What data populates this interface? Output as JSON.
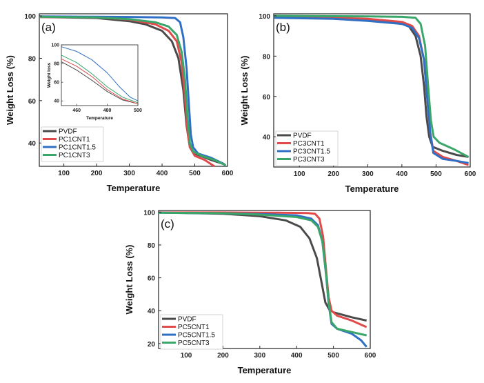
{
  "colors": {
    "black": "#4a4a4a",
    "red": "#e04a4a",
    "blue": "#2f6fc4",
    "green": "#3aa66a"
  },
  "chart_data": [
    {
      "type": "line",
      "panel_label": "(a)",
      "xlabel": "Temperature",
      "ylabel": "Weight Loss (%)",
      "xlim": [
        25,
        600
      ],
      "ylim": [
        29,
        101
      ],
      "xticks": [
        "100",
        "200",
        "300",
        "400",
        "500",
        "600"
      ],
      "yticks": [
        "40",
        "60",
        "80",
        "100"
      ],
      "series": [
        {
          "name": "PVDF",
          "color": "black",
          "points": [
            [
              25,
              99.5
            ],
            [
              200,
              99
            ],
            [
              300,
              97.5
            ],
            [
              350,
              96
            ],
            [
              400,
              93
            ],
            [
              430,
              88
            ],
            [
              450,
              80
            ],
            [
              465,
              65
            ],
            [
              475,
              48
            ],
            [
              485,
              38
            ],
            [
              500,
              35
            ],
            [
              550,
              32
            ],
            [
              590,
              30
            ]
          ]
        },
        {
          "name": "PC1CNT1",
          "color": "red",
          "points": [
            [
              25,
              99.5
            ],
            [
              200,
              99.3
            ],
            [
              300,
              98.3
            ],
            [
              380,
              96
            ],
            [
              420,
              93
            ],
            [
              445,
              88
            ],
            [
              460,
              78
            ],
            [
              470,
              62
            ],
            [
              478,
              45
            ],
            [
              485,
              38
            ],
            [
              500,
              34
            ],
            [
              530,
              32
            ],
            [
              560,
              29
            ]
          ]
        },
        {
          "name": "PC1CNT1.5",
          "color": "blue",
          "points": [
            [
              25,
              99.8
            ],
            [
              200,
              99.6
            ],
            [
              300,
              99.5
            ],
            [
              400,
              99.3
            ],
            [
              440,
              99
            ],
            [
              455,
              97
            ],
            [
              465,
              90
            ],
            [
              475,
              75
            ],
            [
              482,
              58
            ],
            [
              488,
              44
            ],
            [
              495,
              38
            ],
            [
              510,
              35
            ],
            [
              550,
              33
            ],
            [
              590,
              30
            ]
          ]
        },
        {
          "name": "PC1CNT3",
          "color": "green",
          "points": [
            [
              25,
              99.6
            ],
            [
              200,
              99.3
            ],
            [
              300,
              98.5
            ],
            [
              380,
              97
            ],
            [
              420,
              95
            ],
            [
              445,
              91
            ],
            [
              460,
              83
            ],
            [
              470,
              70
            ],
            [
              478,
              52
            ],
            [
              485,
              40
            ],
            [
              495,
              36
            ],
            [
              520,
              34
            ],
            [
              560,
              32
            ],
            [
              595,
              29.5
            ]
          ]
        }
      ],
      "inset": {
        "xlabel": "Temperature",
        "ylabel": "Weight loss",
        "xlim": [
          450,
          500
        ],
        "ylim": [
          35,
          100
        ],
        "xticks": [
          "460",
          "480",
          "500"
        ],
        "yticks": [
          "40",
          "60",
          "80",
          "100"
        ],
        "series": [
          {
            "name": "PVDF",
            "color": "black",
            "points": [
              [
                450,
                82
              ],
              [
                460,
                73
              ],
              [
                470,
                62
              ],
              [
                480,
                50
              ],
              [
                490,
                41
              ],
              [
                500,
                37
              ]
            ]
          },
          {
            "name": "PC1CNT1",
            "color": "red",
            "points": [
              [
                450,
                85
              ],
              [
                460,
                77
              ],
              [
                470,
                66
              ],
              [
                480,
                52
              ],
              [
                490,
                42
              ],
              [
                500,
                37
              ]
            ]
          },
          {
            "name": "PC1CNT1.5",
            "color": "blue",
            "points": [
              [
                450,
                98
              ],
              [
                460,
                93
              ],
              [
                470,
                84
              ],
              [
                480,
                70
              ],
              [
                488,
                55
              ],
              [
                495,
                44
              ],
              [
                500,
                40
              ]
            ]
          },
          {
            "name": "PC1CNT3",
            "color": "green",
            "points": [
              [
                450,
                89
              ],
              [
                460,
                81
              ],
              [
                470,
                69
              ],
              [
                480,
                55
              ],
              [
                490,
                44
              ],
              [
                500,
                38
              ]
            ]
          }
        ]
      }
    },
    {
      "type": "line",
      "panel_label": "(b)",
      "xlabel": "Temperature",
      "ylabel": "Weight Loss (%)",
      "xlim": [
        25,
        600
      ],
      "ylim": [
        25,
        101
      ],
      "xticks": [
        "100",
        "200",
        "300",
        "400",
        "500",
        "600"
      ],
      "yticks": [
        "40",
        "60",
        "80",
        "100"
      ],
      "series": [
        {
          "name": "PVDF",
          "color": "black",
          "points": [
            [
              25,
              99.8
            ],
            [
              200,
              99
            ],
            [
              300,
              98
            ],
            [
              380,
              97
            ],
            [
              420,
              95
            ],
            [
              440,
              90
            ],
            [
              455,
              80
            ],
            [
              465,
              65
            ],
            [
              472,
              50
            ],
            [
              480,
              40
            ],
            [
              490,
              35
            ],
            [
              520,
              33
            ],
            [
              560,
              31
            ],
            [
              595,
              30
            ]
          ]
        },
        {
          "name": "PC3CNT1",
          "color": "red",
          "points": [
            [
              25,
              99.5
            ],
            [
              200,
              99
            ],
            [
              300,
              98.5
            ],
            [
              400,
              97
            ],
            [
              430,
              95
            ],
            [
              450,
              90
            ],
            [
              465,
              78
            ],
            [
              475,
              58
            ],
            [
              483,
              42
            ],
            [
              492,
              33
            ],
            [
              520,
              30
            ],
            [
              560,
              28
            ],
            [
              595,
              26
            ]
          ]
        },
        {
          "name": "PC3CNT1.5",
          "color": "blue",
          "points": [
            [
              25,
              99
            ],
            [
              200,
              98.5
            ],
            [
              300,
              97.5
            ],
            [
              400,
              96
            ],
            [
              430,
              94
            ],
            [
              450,
              89
            ],
            [
              465,
              78
            ],
            [
              475,
              58
            ],
            [
              483,
              42
            ],
            [
              492,
              32
            ],
            [
              520,
              29
            ],
            [
              560,
              28
            ],
            [
              595,
              27
            ]
          ]
        },
        {
          "name": "PC3CNT3",
          "color": "green",
          "points": [
            [
              25,
              100
            ],
            [
              200,
              99.8
            ],
            [
              300,
              99.7
            ],
            [
              400,
              99.5
            ],
            [
              440,
              99
            ],
            [
              455,
              96
            ],
            [
              468,
              85
            ],
            [
              477,
              65
            ],
            [
              485,
              48
            ],
            [
              493,
              40
            ],
            [
              510,
              37
            ],
            [
              550,
              34
            ],
            [
              595,
              30
            ]
          ]
        }
      ]
    },
    {
      "type": "line",
      "panel_label": "(c)",
      "xlabel": "Temperature",
      "ylabel": "Weight Loss (%)",
      "xlim": [
        25,
        600
      ],
      "ylim": [
        17,
        101
      ],
      "xticks": [
        "100",
        "200",
        "300",
        "400",
        "500",
        "600"
      ],
      "yticks": [
        "20",
        "40",
        "60",
        "80",
        "100"
      ],
      "series": [
        {
          "name": "PVDF",
          "color": "black",
          "points": [
            [
              25,
              99.8
            ],
            [
              200,
              99
            ],
            [
              300,
              97.5
            ],
            [
              370,
              95
            ],
            [
              410,
              91
            ],
            [
              435,
              84
            ],
            [
              455,
              72
            ],
            [
              468,
              57
            ],
            [
              478,
              45
            ],
            [
              488,
              41
            ],
            [
              500,
              39
            ],
            [
              550,
              36
            ],
            [
              590,
              34
            ]
          ]
        },
        {
          "name": "PC5CNT1",
          "color": "red",
          "points": [
            [
              25,
              99.8
            ],
            [
              200,
              99.8
            ],
            [
              350,
              99.6
            ],
            [
              430,
              99.4
            ],
            [
              450,
              99
            ],
            [
              462,
              96
            ],
            [
              472,
              85
            ],
            [
              480,
              65
            ],
            [
              487,
              48
            ],
            [
              495,
              40
            ],
            [
              510,
              37
            ],
            [
              550,
              34
            ],
            [
              590,
              30
            ]
          ]
        },
        {
          "name": "PC5CNT1.5",
          "color": "blue",
          "points": [
            [
              25,
              99.6
            ],
            [
              200,
              99.3
            ],
            [
              300,
              98.8
            ],
            [
              400,
              98
            ],
            [
              440,
              96
            ],
            [
              458,
              92
            ],
            [
              470,
              82
            ],
            [
              480,
              62
            ],
            [
              487,
              44
            ],
            [
              495,
              32
            ],
            [
              510,
              29
            ],
            [
              550,
              26
            ],
            [
              575,
              22
            ],
            [
              590,
              18
            ]
          ]
        },
        {
          "name": "PC5CNT3",
          "color": "green",
          "points": [
            [
              25,
              99.6
            ],
            [
              200,
              99.3
            ],
            [
              300,
              98.5
            ],
            [
              400,
              97
            ],
            [
              440,
              95
            ],
            [
              458,
              91
            ],
            [
              470,
              82
            ],
            [
              480,
              63
            ],
            [
              487,
              45
            ],
            [
              495,
              33
            ],
            [
              510,
              29
            ],
            [
              550,
              27
            ],
            [
              590,
              25
            ]
          ]
        }
      ]
    }
  ]
}
